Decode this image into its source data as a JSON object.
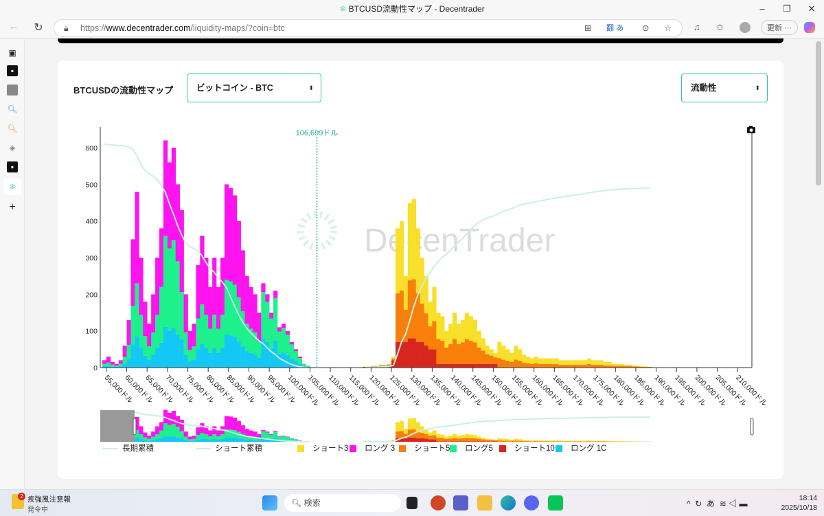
{
  "browser": {
    "title": "BTCUSD流動性マップ - Decentrader",
    "url_prefix": "https://",
    "url_domain": "www.decentrader.com",
    "url_path": "/liquidity-maps/?coin=btc",
    "update_label": "更新",
    "translate_label": "あ"
  },
  "page": {
    "title": "BTCUSDの流動性マップ",
    "coin_select": "ビットコイン - BTC",
    "mode_select": "流動性",
    "watermark": "DecenTrader",
    "current_price_label": "106,699ドル",
    "current_price": 106699
  },
  "colors": {
    "long3": "#ff14f0",
    "long5": "#1ef08c",
    "long10": "#14c8f5",
    "short3": "#f8df2a",
    "short5": "#f77f0a",
    "short10": "#d8261e",
    "cum": "#c8f0e6",
    "price": "#1fae95"
  },
  "legend": [
    {
      "key": "cumLong",
      "label": "長期累積"
    },
    {
      "key": "cumShort",
      "label": "ショート累積"
    },
    {
      "key": "short3",
      "label": "ショート3"
    },
    {
      "key": "long3",
      "label": "ロング 3"
    },
    {
      "key": "short5",
      "label": "ショート5"
    },
    {
      "key": "long5",
      "label": "ロング5"
    },
    {
      "key": "short10",
      "label": "ショート10"
    },
    {
      "key": "long10",
      "label": "ロング 1C"
    }
  ],
  "chart_data": {
    "type": "bar",
    "stacked": true,
    "title": "BTCUSDの流動性マップ",
    "xlabel": "",
    "ylabel": "",
    "xlim": [
      53500,
      213500
    ],
    "ylim": [
      0,
      650
    ],
    "yticks": [
      0,
      100,
      200,
      300,
      400,
      500,
      600
    ],
    "xticks": [
      55000,
      60000,
      65000,
      70000,
      75000,
      80000,
      85000,
      90000,
      95000,
      100000,
      105000,
      110000,
      115000,
      120000,
      125000,
      130000,
      135000,
      140000,
      145000,
      150000,
      155000,
      160000,
      165000,
      170000,
      175000,
      180000,
      185000,
      190000,
      195000,
      200000,
      205000,
      210000
    ],
    "xtick_labels": [
      "55,000ドル",
      "60,000ドル",
      "65,000ドル",
      "70,000ドル",
      "75,000ドル",
      "80,000ドル",
      "85,000ドル",
      "90,000ドル",
      "95,000ドル",
      "100,000ドル",
      "105,000ドル",
      "110,000ドル",
      "115,000ドル",
      "120,000ドル",
      "125,000ドル",
      "130,000ドル",
      "135,000ドル",
      "140,000ドル",
      "145,000ドル",
      "150,000ドル",
      "155,000ドル",
      "160,000ドル",
      "165,000ドル",
      "170,000ドル",
      "175,000ドル",
      "180,000ドル",
      "185,000ドル",
      "190,000ドル",
      "195,000ドル",
      "200,000ドル",
      "205,000ドル",
      "210,000ドル"
    ],
    "bucket_size": 1000,
    "long": {
      "x_start": 54000,
      "long10": [
        4,
        5,
        3,
        2,
        4,
        11,
        23,
        63,
        86,
        54,
        32,
        22,
        36,
        54,
        68,
        112,
        101,
        108,
        90,
        77,
        36,
        18,
        22,
        50,
        65,
        54,
        40,
        54,
        40,
        54,
        90,
        88,
        85,
        72,
        58,
        45,
        40,
        36,
        27,
        80,
        70,
        52,
        74,
        38,
        42,
        35,
        25,
        18,
        10,
        4,
        2
      ],
      "long5": [
        6,
        9,
        5,
        3,
        6,
        18,
        39,
        105,
        144,
        90,
        54,
        36,
        60,
        90,
        152,
        248,
        224,
        240,
        200,
        129,
        60,
        30,
        36,
        84,
        108,
        90,
        66,
        90,
        66,
        90,
        150,
        147,
        141,
        120,
        96,
        75,
        66,
        60,
        45,
        126,
        110,
        82,
        116,
        60,
        66,
        55,
        38,
        27,
        16,
        5,
        3
      ],
      "long3": [
        10,
        16,
        7,
        5,
        10,
        31,
        68,
        182,
        250,
        156,
        94,
        62,
        104,
        156,
        160,
        260,
        235,
        252,
        210,
        224,
        104,
        52,
        62,
        146,
        187,
        156,
        114,
        156,
        114,
        156,
        260,
        255,
        244,
        208,
        166,
        130,
        114,
        104,
        78,
        24,
        20,
        16,
        20,
        12,
        12,
        10,
        7,
        5,
        4,
        1,
        0
      ]
    },
    "short": {
      "x_start": 118000,
      "short10": [
        2,
        2,
        3,
        3,
        5,
        5,
        6,
        20,
        70,
        70,
        70,
        80,
        80,
        70,
        70,
        60,
        50,
        50,
        10,
        10,
        10,
        10,
        10,
        10,
        10,
        10,
        10,
        10,
        10,
        10,
        10,
        10,
        10,
        1,
        1,
        1,
        1,
        1,
        1,
        1,
        1,
        1,
        1,
        1,
        1,
        1,
        1,
        1,
        1,
        1,
        1,
        1,
        1,
        1,
        1,
        1,
        1,
        1,
        1,
        1,
        1,
        1,
        1,
        1,
        1,
        1,
        1,
        1,
        1,
        1,
        1
      ],
      "short5": [
        0,
        0,
        1,
        1,
        1,
        1,
        2,
        5,
        133,
        140,
        88,
        158,
        161,
        133,
        105,
        88,
        63,
        77,
        68,
        63,
        45,
        54,
        68,
        54,
        59,
        68,
        63,
        59,
        45,
        36,
        27,
        23,
        18,
        25,
        21,
        18,
        14,
        21,
        18,
        12,
        11,
        9,
        11,
        9,
        9,
        9,
        9,
        9,
        7,
        7,
        7,
        7,
        7,
        7,
        7,
        9,
        7,
        7,
        7,
        5,
        5,
        4,
        4,
        4,
        3,
        3,
        2,
        2,
        1,
        1,
        1
      ],
      "short3": [
        1,
        1,
        1,
        1,
        2,
        2,
        2,
        5,
        177,
        190,
        92,
        212,
        219,
        177,
        125,
        102,
        67,
        93,
        72,
        67,
        45,
        56,
        72,
        56,
        61,
        72,
        67,
        61,
        45,
        34,
        23,
        17,
        12,
        44,
        38,
        31,
        25,
        38,
        31,
        22,
        18,
        15,
        18,
        15,
        15,
        15,
        15,
        15,
        12,
        12,
        12,
        12,
        12,
        12,
        12,
        15,
        12,
        12,
        12,
        9,
        9,
        5,
        5,
        5,
        4,
        4,
        3,
        2,
        2,
        1,
        0
      ]
    }
  },
  "taskbar": {
    "weather_title": "疾強風注意報",
    "weather_sub": "発令中",
    "weather_badge": "2",
    "search": "検索",
    "time": "18:14",
    "date": "2025/10/18",
    "ime": "あ"
  }
}
